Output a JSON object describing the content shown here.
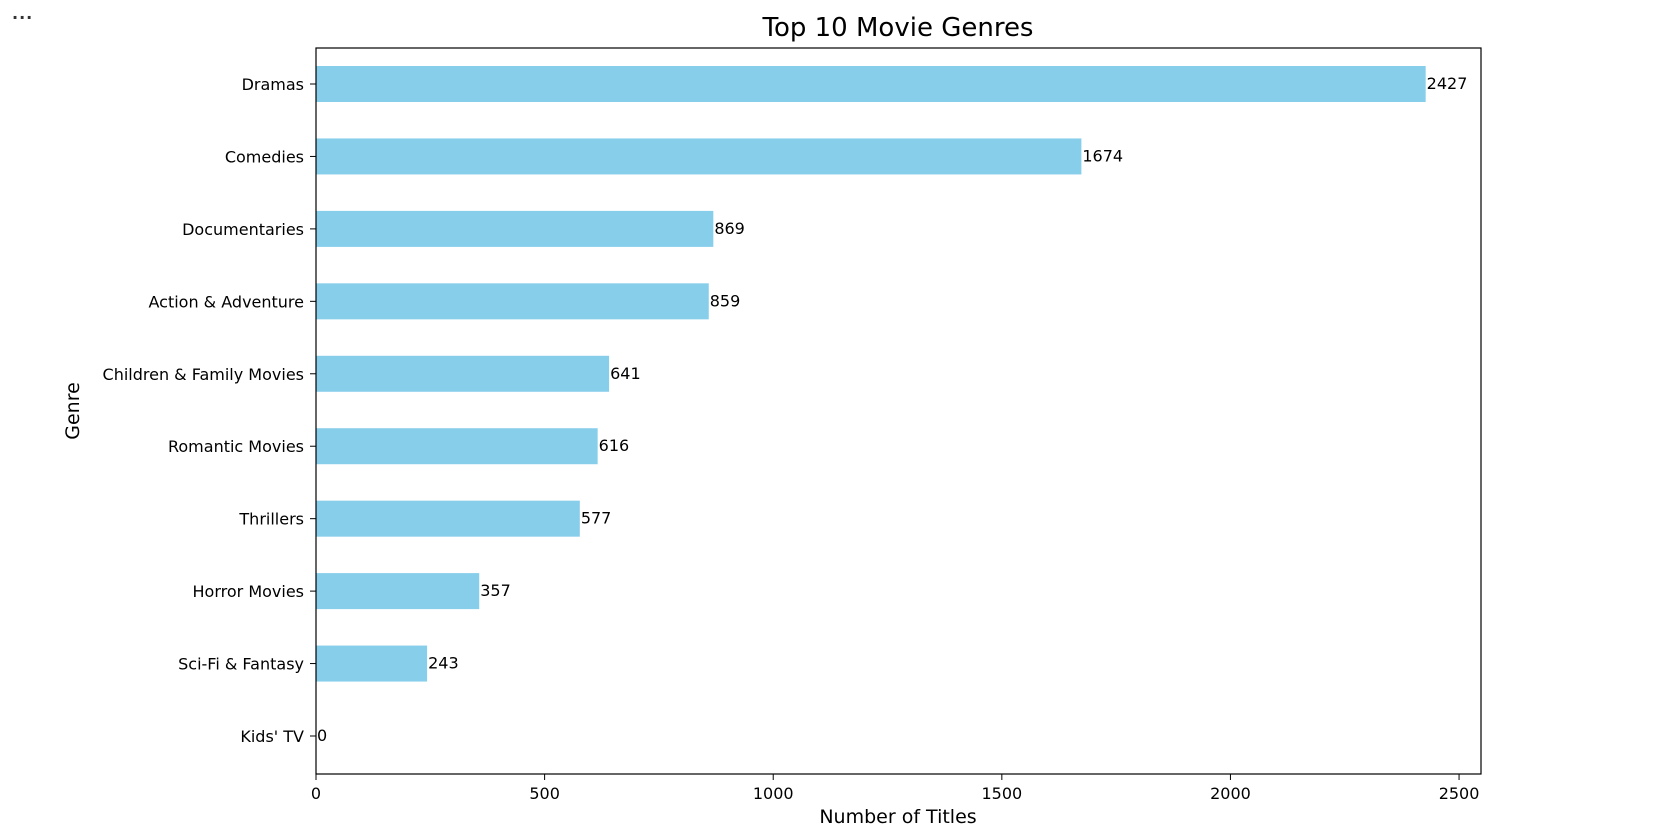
{
  "cell": {
    "menu_label": "..."
  },
  "chart_data": {
    "type": "bar",
    "orientation": "horizontal",
    "title": "Top 10 Movie Genres",
    "xlabel": "Number of Titles",
    "ylabel": "Genre",
    "categories": [
      "Dramas",
      "Comedies",
      "Documentaries",
      "Action & Adventure",
      "Children & Family Movies",
      "Romantic Movies",
      "Thrillers",
      "Horror Movies",
      "Sci-Fi & Fantasy",
      "Kids' TV"
    ],
    "values": [
      2427,
      1674,
      869,
      859,
      641,
      616,
      577,
      357,
      243,
      0
    ],
    "xlim": [
      0,
      2548
    ],
    "xticks": [
      "0",
      "500",
      "1000",
      "1500",
      "2000",
      "2500"
    ],
    "bar_color": "#87ceeb",
    "grid": false,
    "legend": "none"
  }
}
